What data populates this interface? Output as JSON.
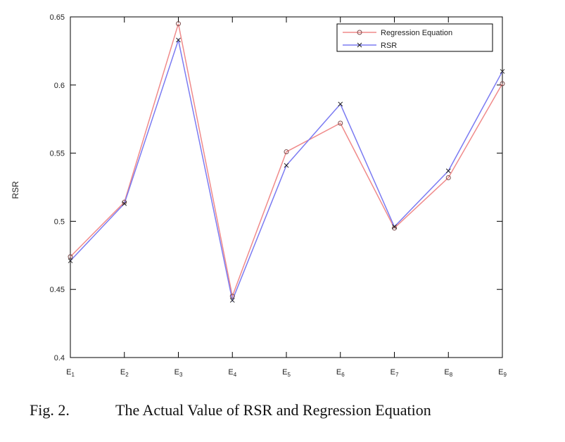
{
  "caption": {
    "figure_label": "Fig. 2.",
    "text": "The Actual Value of RSR and Regression Equation"
  },
  "chart_data": {
    "type": "line",
    "title": "",
    "xlabel": "",
    "ylabel": "RSR",
    "categories": [
      "E1",
      "E2",
      "E3",
      "E4",
      "E5",
      "E6",
      "E7",
      "E8",
      "E9"
    ],
    "category_subscripts": [
      "1",
      "2",
      "3",
      "4",
      "5",
      "6",
      "7",
      "8",
      "9"
    ],
    "category_base": "E",
    "ylim": [
      0.4,
      0.65
    ],
    "yticks": [
      0.4,
      0.45,
      0.5,
      0.55,
      0.6,
      0.65
    ],
    "ytick_labels": [
      "0.4",
      "0.45",
      "0.5",
      "0.55",
      "0.6",
      "0.65"
    ],
    "grid": false,
    "legend_position": "top-right",
    "series": [
      {
        "name": "Regression Equation",
        "color": "#f08a8a",
        "marker": "circle",
        "values": [
          0.474,
          0.514,
          0.645,
          0.445,
          0.551,
          0.572,
          0.495,
          0.532,
          0.601
        ]
      },
      {
        "name": "RSR",
        "color": "#7b7bf2",
        "marker": "x",
        "values": [
          0.471,
          0.513,
          0.633,
          0.442,
          0.541,
          0.586,
          0.496,
          0.537,
          0.61
        ]
      }
    ]
  }
}
